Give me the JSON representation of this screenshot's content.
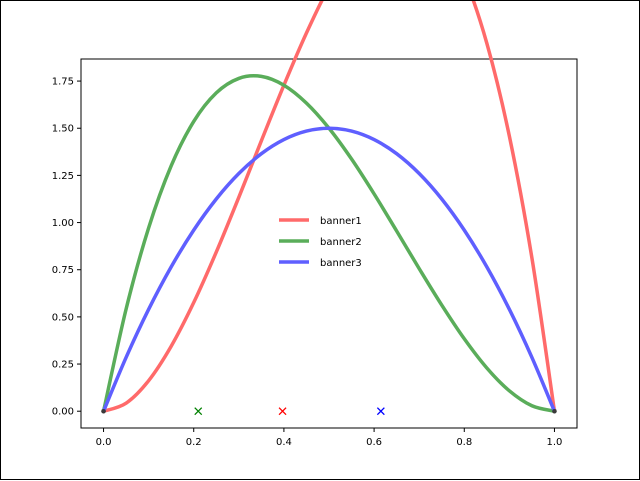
{
  "chart_data": {
    "type": "line",
    "title": "",
    "xlabel": "",
    "ylabel": "",
    "xlim": [
      -0.05,
      1.05
    ],
    "ylim": [
      -0.089,
      1.867
    ],
    "grid": false,
    "legend_position": "center",
    "x_ticks": [
      "0.0",
      "0.2",
      "0.4",
      "0.6",
      "0.8",
      "1.0"
    ],
    "x_tick_values": [
      0.0,
      0.2,
      0.4,
      0.6,
      0.8,
      1.0
    ],
    "y_ticks": [
      "0.00",
      "0.25",
      "0.50",
      "0.75",
      "1.00",
      "1.25",
      "1.50",
      "1.75"
    ],
    "y_tick_values": [
      0.0,
      0.25,
      0.5,
      0.75,
      1.0,
      1.25,
      1.5,
      1.75
    ],
    "x": [
      0.0,
      0.05,
      0.1,
      0.15,
      0.2,
      0.25,
      0.3,
      0.35,
      0.4,
      0.45,
      0.5,
      0.55,
      0.6,
      0.65,
      0.7,
      0.75,
      0.8,
      0.85,
      0.9,
      0.95,
      1.0
    ],
    "series": [
      {
        "name": "banner1",
        "color": "#ff6a6a",
        "values": [
          0.0,
          0.0071,
          0.027,
          0.0574,
          0.096,
          0.1406,
          0.189,
          0.2389,
          0.288,
          0.3341,
          0.375,
          0.4084,
          0.432,
          0.4436,
          0.441,
          0.4219,
          0.384,
          0.3251,
          0.243,
          0.1354,
          0.0
        ],
        "scale": 6.0
      },
      {
        "name": "banner2",
        "color": "#5aad5a",
        "values": [
          0.0,
          0.0451,
          0.081,
          0.1084,
          0.128,
          0.1406,
          0.147,
          0.1479,
          0.144,
          0.1361,
          0.125,
          0.1114,
          0.096,
          0.0796,
          0.063,
          0.0469,
          0.032,
          0.0191,
          0.009,
          0.0024,
          0.0
        ],
        "scale": 12.0
      },
      {
        "name": "banner3",
        "color": "#5f5fff",
        "values": [
          0.0,
          0.285,
          0.54,
          0.765,
          0.96,
          1.125,
          1.26,
          1.365,
          1.44,
          1.485,
          1.5,
          1.485,
          1.44,
          1.365,
          1.26,
          1.125,
          0.96,
          0.765,
          0.54,
          0.285,
          0.0
        ],
        "scale": 1.0
      }
    ],
    "markers": [
      {
        "x": 0.21,
        "y": 0.0,
        "symbol": "x",
        "color": "#008000"
      },
      {
        "x": 0.397,
        "y": 0.0,
        "symbol": "x",
        "color": "#ff0000"
      },
      {
        "x": 0.615,
        "y": 0.0,
        "symbol": "x",
        "color": "#0000ff"
      }
    ],
    "legend": [
      "banner1",
      "banner2",
      "banner3"
    ]
  }
}
